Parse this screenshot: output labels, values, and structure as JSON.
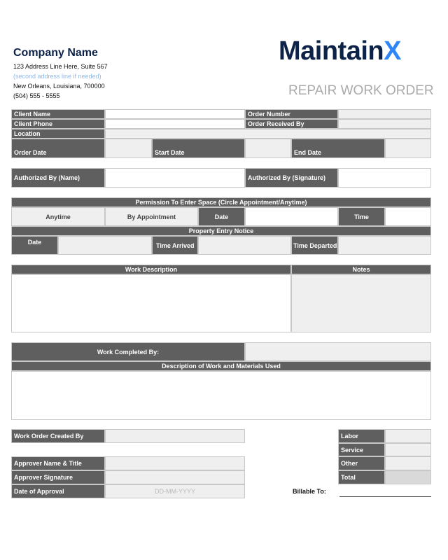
{
  "company": {
    "name": "Company Name",
    "address1": "123 Address Line Here, Suite 567",
    "address2": "(second address line if needed)",
    "city": "New Orleans, Louisiana, 700000",
    "phone": "(504) 555 - 5555"
  },
  "logo": {
    "text": "MaintainX",
    "brand_color": "#0c2247",
    "accent_color": "#2f86f6"
  },
  "title": "REPAIR WORK ORDER",
  "client": {
    "client_name": "Client Name",
    "client_phone": "Client Phone",
    "location": "Location",
    "order_number": "Order Number",
    "order_received_by": "Order Received By",
    "order_date": "Order Date",
    "start_date": "Start Date",
    "end_date": "End Date"
  },
  "auth": {
    "name": "Authorized By (Name)",
    "signature": "Authorized By (Signature)"
  },
  "permission": {
    "header": "Permission To Enter Space (Circle Appointment/Anytime)",
    "anytime": "Anytime",
    "by_appointment": "By Appointment",
    "date": "Date",
    "time": "Time"
  },
  "entry": {
    "header": "Property Entry Notice",
    "date": "Date",
    "time_arrived": "Time Arrived",
    "time_departed": "Time Departed"
  },
  "work": {
    "description": "Work Description",
    "notes": "Notes",
    "completed_by": "Work Completed By:",
    "materials": "Description of Work and Materials Used"
  },
  "approval": {
    "created_by": "Work Order Created By",
    "approver_name": "Approver Name & Title",
    "approver_signature": "Approver Signature",
    "date_of_approval": "Date of Approval",
    "date_placeholder": "DD-MM-YYYY"
  },
  "costs": {
    "labor": "Labor",
    "service": "Service",
    "other": "Other",
    "total": "Total",
    "billable_to": "Billable To:"
  }
}
